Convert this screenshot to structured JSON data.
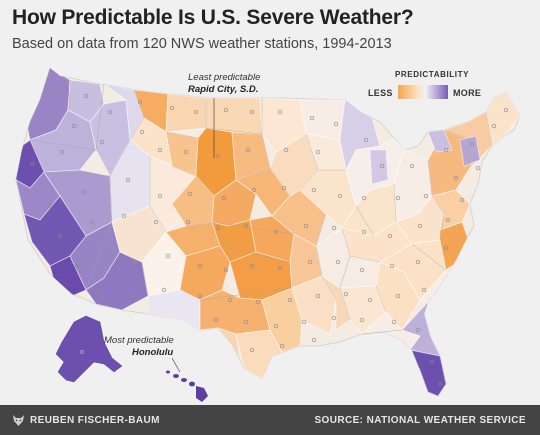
{
  "title": "How Predictable Is U.S. Severe Weather?",
  "subtitle": "Based on data from 120 NWS weather stations, 1994-2013",
  "legend": {
    "title": "PREDICTABILITY",
    "less": "LESS",
    "more": "MORE"
  },
  "annotations": {
    "least": {
      "lead": "Least predictable",
      "place": "Rapid City, S.D."
    },
    "most": {
      "lead": "Most predictable",
      "place": "Honolulu"
    }
  },
  "footer": {
    "author": "REUBEN FISCHER-BAUM",
    "source": "SOURCE: NATIONAL WEATHER SERVICE"
  },
  "colors": {
    "less": "#f6a64e",
    "neutral": "#f3f0f4",
    "more": "#7b5cb5",
    "background": "#f0f0f0",
    "footer": "#444444"
  }
}
